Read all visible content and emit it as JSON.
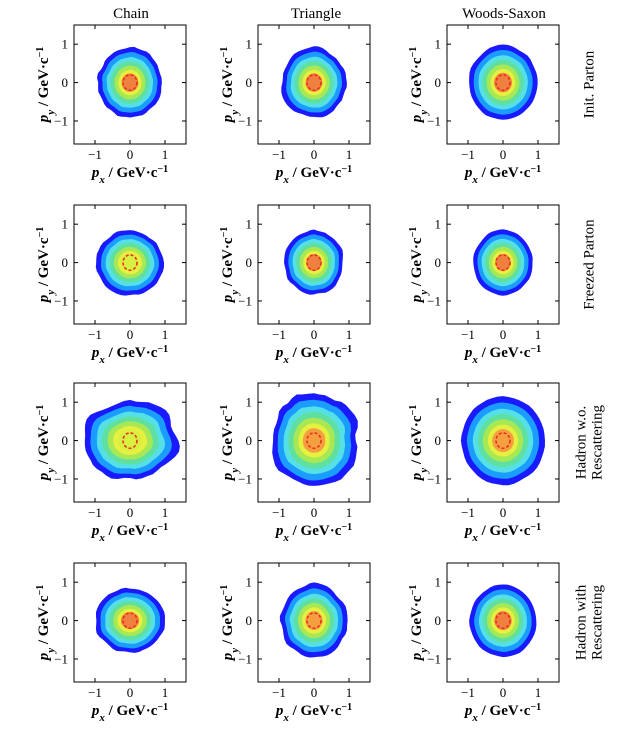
{
  "columns": [
    "Chain",
    "Triangle",
    "Woods-Saxon"
  ],
  "rows": [
    {
      "label": [
        "Init. Parton"
      ]
    },
    {
      "label": [
        "Freezed Parton"
      ]
    },
    {
      "label": [
        "Hadron w.o.",
        "Rescattering"
      ]
    },
    {
      "label": [
        "Hadron with",
        "Rescattering"
      ]
    }
  ],
  "axes": {
    "x_var": "p",
    "x_sub": "x",
    "y_var": "p",
    "y_sub": "y",
    "unit": " / GeV·c",
    "unit_sup": "−1",
    "xlim": [
      -1.6,
      1.6
    ],
    "ylim": [
      -1.6,
      1.5
    ],
    "x_ticks": [
      -1,
      0,
      1
    ],
    "y_ticks": [
      -1,
      0,
      1
    ],
    "x_tick_labels": [
      "−1",
      "0",
      "1"
    ],
    "y_tick_labels": [
      "−1",
      "0",
      "1"
    ]
  },
  "chart_data": [
    {
      "type": "heatmap",
      "row": "Init. Parton",
      "column": "Chain",
      "rx": 0.92,
      "ry": 0.92,
      "noise": 0.07,
      "core": "red"
    },
    {
      "type": "heatmap",
      "row": "Init. Parton",
      "column": "Triangle",
      "rx": 0.92,
      "ry": 0.92,
      "noise": 0.07,
      "core": "red"
    },
    {
      "type": "heatmap",
      "row": "Init. Parton",
      "column": "Woods-Saxon",
      "rx": 0.98,
      "ry": 0.98,
      "noise": 0.03,
      "core": "red"
    },
    {
      "type": "heatmap",
      "row": "Freezed Parton",
      "column": "Chain",
      "rx": 0.95,
      "ry": 0.85,
      "noise": 0.06,
      "core": "yellow"
    },
    {
      "type": "heatmap",
      "row": "Freezed Parton",
      "column": "Triangle",
      "rx": 0.85,
      "ry": 0.85,
      "noise": 0.06,
      "core": "red"
    },
    {
      "type": "heatmap",
      "row": "Freezed Parton",
      "column": "Woods-Saxon",
      "rx": 0.85,
      "ry": 0.85,
      "noise": 0.03,
      "core": "red"
    },
    {
      "type": "heatmap",
      "row": "Hadron w.o. Rescattering",
      "column": "Chain",
      "rx": 1.35,
      "ry": 1.05,
      "noise": 0.1,
      "core": "yellow"
    },
    {
      "type": "heatmap",
      "row": "Hadron w.o. Rescattering",
      "column": "Triangle",
      "rx": 1.25,
      "ry": 1.25,
      "noise": 0.1,
      "core": "orange"
    },
    {
      "type": "heatmap",
      "row": "Hadron w.o. Rescattering",
      "column": "Woods-Saxon",
      "rx": 1.2,
      "ry": 1.15,
      "noise": 0.03,
      "core": "orange"
    },
    {
      "type": "heatmap",
      "row": "Hadron with Rescattering",
      "column": "Chain",
      "rx": 1.0,
      "ry": 0.85,
      "noise": 0.05,
      "core": "red"
    },
    {
      "type": "heatmap",
      "row": "Hadron with Rescattering",
      "column": "Triangle",
      "rx": 0.95,
      "ry": 0.95,
      "noise": 0.06,
      "core": "orange"
    },
    {
      "type": "heatmap",
      "row": "Hadron with Rescattering",
      "column": "Woods-Saxon",
      "rx": 0.95,
      "ry": 0.95,
      "noise": 0.03,
      "core": "red"
    }
  ],
  "colors": {
    "levels": [
      "#1a1aff",
      "#1a9dff",
      "#55e0e6",
      "#5fe0a0",
      "#a8e855",
      "#e6f040",
      "#f5a040"
    ],
    "core": {
      "red": "#f08040",
      "orange": "#f5a040",
      "yellow": "#d8f040"
    },
    "core_ring": "#e83020"
  }
}
